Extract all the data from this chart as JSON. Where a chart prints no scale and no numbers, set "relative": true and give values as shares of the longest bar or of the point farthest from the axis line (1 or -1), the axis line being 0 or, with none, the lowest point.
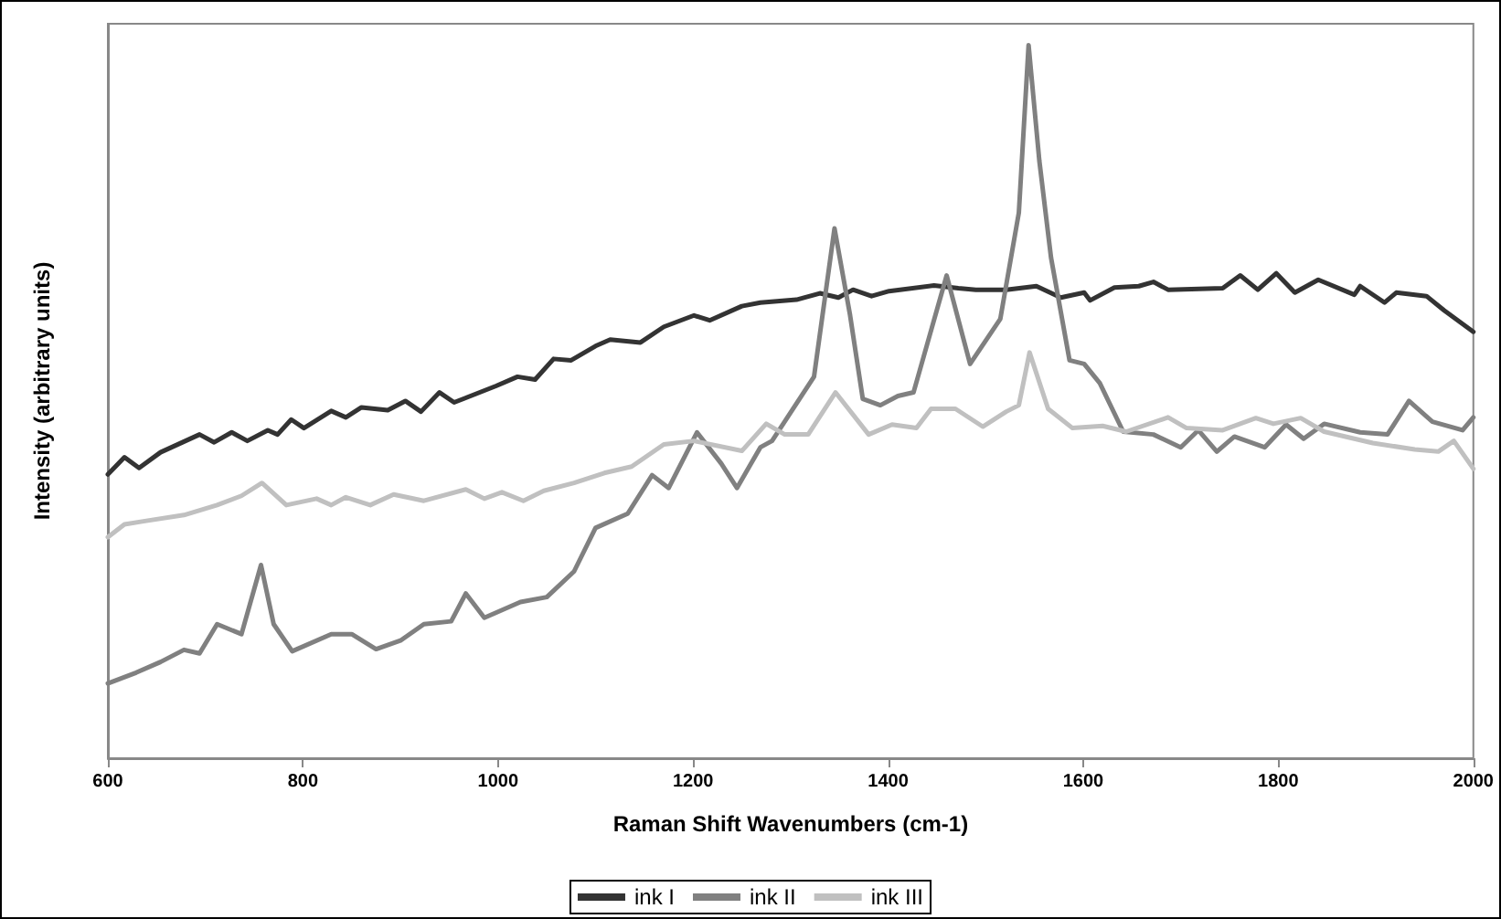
{
  "chart_data": {
    "type": "line",
    "xlabel": "Raman Shift Wavenumbers (cm-1)",
    "ylabel": "Intensity (arbitrary units)",
    "relative": true,
    "xlim": [
      600,
      2000
    ],
    "xticks": [
      600,
      800,
      1000,
      1200,
      1400,
      1600,
      1800,
      2000
    ],
    "grid": false,
    "legend": "bottom",
    "marker": "none",
    "line_style": "solid",
    "series": [
      {
        "name": "ink I",
        "color": "#333333",
        "x": [
          600,
          617,
          632,
          654,
          694,
          709,
          727,
          743,
          764,
          774,
          788,
          801,
          829,
          844,
          860,
          887,
          905,
          921,
          940,
          955,
          998,
          1020,
          1038,
          1057,
          1075,
          1100,
          1115,
          1146,
          1170,
          1201,
          1217,
          1250,
          1269,
          1306,
          1330,
          1349,
          1364,
          1383,
          1401,
          1447,
          1472,
          1490,
          1521,
          1552,
          1577,
          1601,
          1607,
          1632,
          1657,
          1672,
          1687,
          1743,
          1761,
          1779,
          1798,
          1817,
          1841,
          1878,
          1884,
          1909,
          1921,
          1952,
          1970,
          2000
        ],
        "values": [
          0.398,
          0.422,
          0.407,
          0.429,
          0.454,
          0.443,
          0.457,
          0.445,
          0.46,
          0.454,
          0.475,
          0.463,
          0.487,
          0.478,
          0.492,
          0.488,
          0.501,
          0.486,
          0.513,
          0.499,
          0.522,
          0.535,
          0.531,
          0.56,
          0.558,
          0.578,
          0.587,
          0.583,
          0.605,
          0.621,
          0.614,
          0.634,
          0.639,
          0.643,
          0.652,
          0.646,
          0.657,
          0.648,
          0.655,
          0.663,
          0.659,
          0.657,
          0.657,
          0.662,
          0.646,
          0.653,
          0.642,
          0.66,
          0.662,
          0.668,
          0.657,
          0.659,
          0.677,
          0.657,
          0.68,
          0.653,
          0.671,
          0.65,
          0.662,
          0.639,
          0.653,
          0.648,
          0.628,
          0.598
        ]
      },
      {
        "name": "ink II",
        "color": "#808080",
        "x": [
          600,
          629,
          654,
          678,
          694,
          712,
          737,
          757,
          770,
          789,
          829,
          850,
          875,
          900,
          924,
          952,
          967,
          986,
          1023,
          1050,
          1078,
          1100,
          1133,
          1158,
          1175,
          1204,
          1229,
          1245,
          1269,
          1281,
          1324,
          1345,
          1361,
          1374,
          1392,
          1410,
          1426,
          1460,
          1484,
          1515,
          1534,
          1544,
          1555,
          1567,
          1586,
          1601,
          1617,
          1641,
          1672,
          1700,
          1718,
          1737,
          1755,
          1786,
          1808,
          1826,
          1847,
          1884,
          1912,
          1934,
          1958,
          1989,
          2000
        ],
        "values": [
          0.105,
          0.12,
          0.135,
          0.152,
          0.147,
          0.188,
          0.174,
          0.271,
          0.188,
          0.15,
          0.174,
          0.174,
          0.153,
          0.165,
          0.188,
          0.192,
          0.231,
          0.197,
          0.219,
          0.226,
          0.262,
          0.323,
          0.343,
          0.397,
          0.379,
          0.457,
          0.413,
          0.379,
          0.436,
          0.445,
          0.535,
          0.743,
          0.621,
          0.504,
          0.495,
          0.508,
          0.513,
          0.677,
          0.553,
          0.616,
          0.765,
          1,
          0.838,
          0.702,
          0.558,
          0.553,
          0.526,
          0.458,
          0.454,
          0.436,
          0.46,
          0.43,
          0.451,
          0.436,
          0.468,
          0.448,
          0.469,
          0.457,
          0.454,
          0.501,
          0.472,
          0.46,
          0.478
        ]
      },
      {
        "name": "ink III",
        "color": "#c0c0c0",
        "x": [
          600,
          617,
          635,
          678,
          712,
          737,
          758,
          783,
          814,
          829,
          844,
          869,
          893,
          924,
          967,
          986,
          1004,
          1026,
          1047,
          1078,
          1109,
          1137,
          1170,
          1201,
          1250,
          1275,
          1294,
          1318,
          1346,
          1380,
          1404,
          1429,
          1444,
          1469,
          1497,
          1521,
          1534,
          1545,
          1564,
          1589,
          1620,
          1644,
          1687,
          1706,
          1743,
          1777,
          1795,
          1823,
          1847,
          1897,
          1940,
          1964,
          1980,
          2000
        ],
        "values": [
          0.31,
          0.328,
          0.332,
          0.341,
          0.355,
          0.368,
          0.386,
          0.355,
          0.364,
          0.355,
          0.366,
          0.355,
          0.37,
          0.361,
          0.377,
          0.364,
          0.373,
          0.361,
          0.375,
          0.386,
          0.4,
          0.409,
          0.44,
          0.445,
          0.431,
          0.469,
          0.454,
          0.454,
          0.513,
          0.454,
          0.468,
          0.463,
          0.49,
          0.49,
          0.465,
          0.486,
          0.495,
          0.569,
          0.49,
          0.463,
          0.466,
          0.458,
          0.478,
          0.463,
          0.46,
          0.477,
          0.469,
          0.477,
          0.458,
          0.442,
          0.433,
          0.43,
          0.445,
          0.406
        ]
      }
    ]
  }
}
